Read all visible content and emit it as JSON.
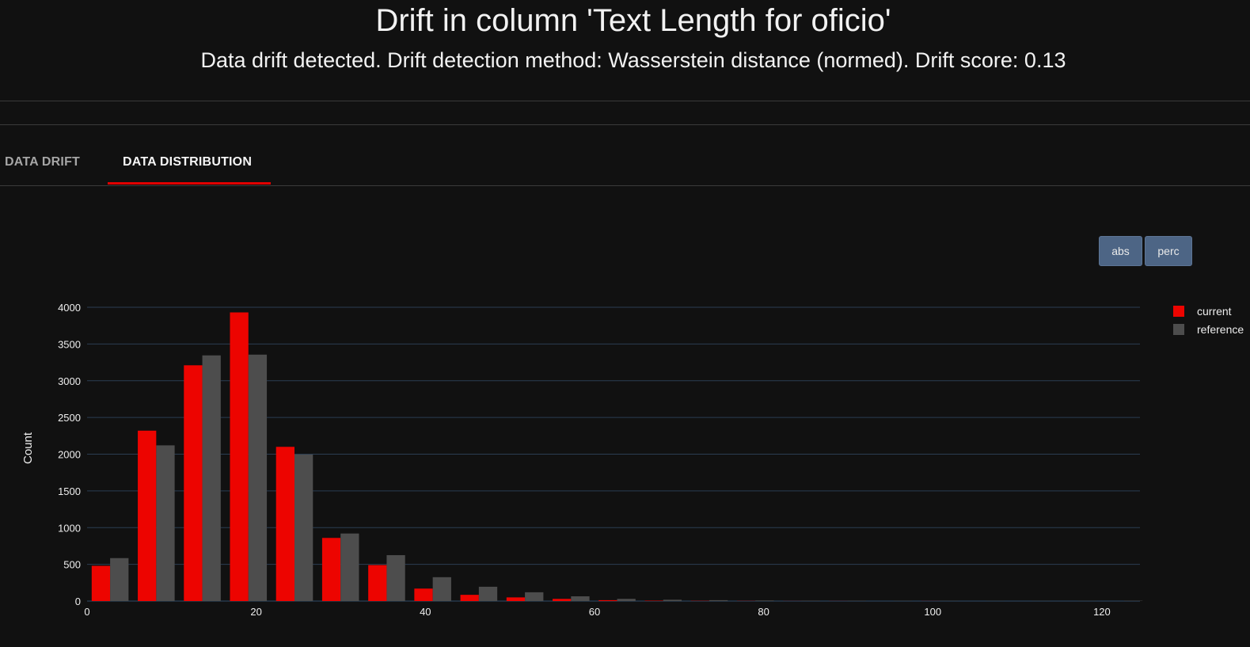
{
  "header": {
    "title": "Drift in column 'Text Length for oficio'",
    "subtitle": "Data drift detected. Drift detection method: Wasserstein distance (normed). Drift score: 0.13"
  },
  "tabs": [
    {
      "label": "DATA DRIFT",
      "active": false
    },
    {
      "label": "DATA DISTRIBUTION",
      "active": true
    }
  ],
  "buttons": {
    "abs": "abs",
    "perc": "perc"
  },
  "colors": {
    "background": "#111111",
    "current": "#ed0400",
    "reference": "#4d4d4d",
    "active_tab_underline": "#e00000",
    "button": "#4d6585",
    "gridline": "#2b3d52"
  },
  "chart_data": {
    "type": "bar",
    "ylabel": "Count",
    "xlabel": "",
    "xlim": [
      0,
      124.5
    ],
    "ylim": [
      0,
      4000
    ],
    "x_ticks": [
      0,
      20,
      40,
      60,
      80,
      100,
      120
    ],
    "y_ticks": [
      0,
      500,
      1000,
      1500,
      2000,
      2500,
      3000,
      3500,
      4000
    ],
    "bin_width": 5.45,
    "bin_starts": [
      0,
      5.45,
      10.9,
      16.35,
      21.8,
      27.25,
      32.7,
      38.15,
      43.6,
      49.05,
      54.5,
      59.95,
      65.4,
      70.85,
      76.3,
      81.75,
      87.2,
      92.65,
      98.1,
      103.55,
      109.0,
      114.45,
      119.9
    ],
    "legend_position": "top-right",
    "grid": true,
    "series": [
      {
        "name": "current",
        "values": [
          480,
          2320,
          3210,
          3930,
          2100,
          860,
          490,
          170,
          85,
          50,
          30,
          12,
          5,
          3,
          2,
          1,
          1,
          0,
          1,
          0,
          0,
          0,
          0
        ]
      },
      {
        "name": "reference",
        "values": [
          585,
          2120,
          3345,
          3355,
          1995,
          920,
          625,
          325,
          195,
          120,
          65,
          30,
          18,
          12,
          8,
          5,
          4,
          3,
          3,
          2,
          2,
          2,
          4
        ]
      }
    ]
  }
}
